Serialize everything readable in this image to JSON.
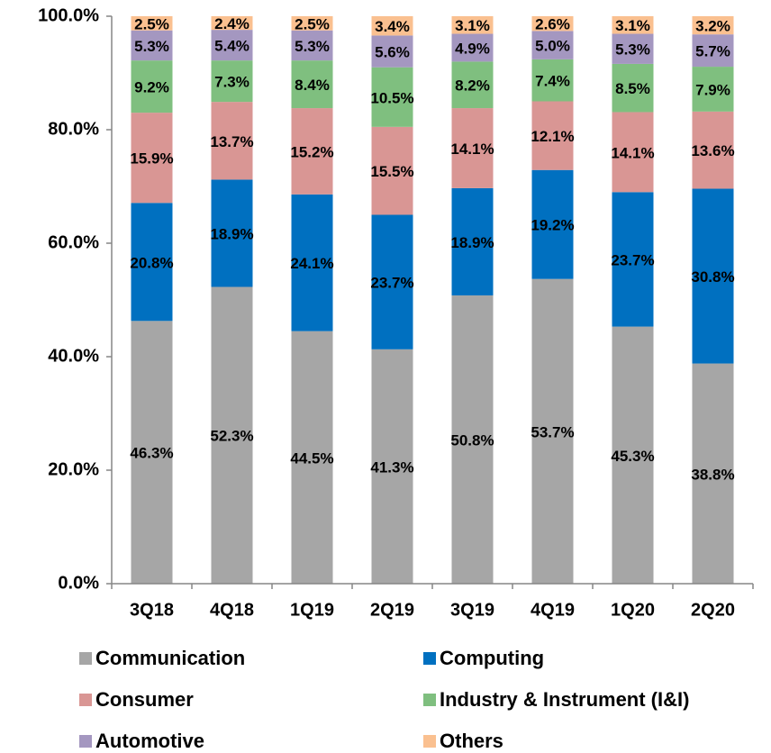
{
  "chart_data": {
    "type": "stacked_bar",
    "categories": [
      "3Q18",
      "4Q18",
      "1Q19",
      "2Q19",
      "3Q19",
      "4Q19",
      "1Q20",
      "2Q20"
    ],
    "series": [
      {
        "name": "Communication",
        "color": "#a6a6a6",
        "values": [
          46.3,
          52.3,
          44.5,
          41.3,
          50.8,
          53.7,
          45.3,
          38.8
        ],
        "value_labels": [
          "46.3%",
          "52.3%",
          "44.5%",
          "41.3%",
          "50.8%",
          "53.7%",
          "45.3%",
          "38.8%"
        ]
      },
      {
        "name": "Computing",
        "color": "#0070c0",
        "values": [
          20.8,
          18.9,
          24.1,
          23.7,
          18.9,
          19.2,
          23.7,
          30.8
        ],
        "value_labels": [
          "20.8%",
          "18.9%",
          "24.1%",
          "23.7%",
          "18.9%",
          "19.2%",
          "23.7%",
          "30.8%"
        ]
      },
      {
        "name": "Consumer",
        "color": "#d99694",
        "values": [
          15.9,
          13.7,
          15.2,
          15.5,
          14.1,
          12.1,
          14.1,
          13.6
        ],
        "value_labels": [
          "15.9%",
          "13.7%",
          "15.2%",
          "15.5%",
          "14.1%",
          "12.1%",
          "14.1%",
          "13.6%"
        ]
      },
      {
        "name": "Industry & Instrument (I&I)",
        "color": "#7fbf7f",
        "values": [
          9.2,
          7.3,
          8.4,
          10.5,
          8.2,
          7.4,
          8.5,
          7.9
        ],
        "value_labels": [
          "9.2%",
          "7.3%",
          "8.4%",
          "10.5%",
          "8.2%",
          "7.4%",
          "8.5%",
          "7.9%"
        ]
      },
      {
        "name": "Automotive",
        "color": "#a497c0",
        "values": [
          5.3,
          5.4,
          5.3,
          5.6,
          4.9,
          5.0,
          5.3,
          5.7
        ],
        "value_labels": [
          "5.3%",
          "5.4%",
          "5.3%",
          "5.6%",
          "4.9%",
          "5.0%",
          "5.3%",
          "5.7%"
        ]
      },
      {
        "name": "Others",
        "color": "#fac090",
        "values": [
          2.5,
          2.4,
          2.5,
          3.4,
          3.1,
          2.6,
          3.1,
          3.2
        ],
        "value_labels": [
          "2.5%",
          "2.4%",
          "2.5%",
          "3.4%",
          "3.1%",
          "2.6%",
          "3.1%",
          "3.2%"
        ]
      }
    ],
    "ylim": [
      0,
      100
    ],
    "yticks": [
      {
        "value": 0,
        "label": "0.0%"
      },
      {
        "value": 20,
        "label": "20.0%"
      },
      {
        "value": 40,
        "label": "40.0%"
      },
      {
        "value": 60,
        "label": "60.0%"
      },
      {
        "value": 80,
        "label": "80.0%"
      },
      {
        "value": 100,
        "label": "100.0%"
      }
    ],
    "legend": "bottom"
  }
}
